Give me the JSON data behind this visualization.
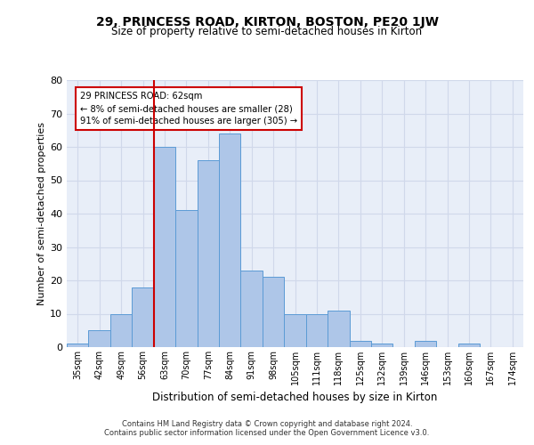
{
  "title_line1": "29, PRINCESS ROAD, KIRTON, BOSTON, PE20 1JW",
  "title_line2": "Size of property relative to semi-detached houses in Kirton",
  "xlabel": "Distribution of semi-detached houses by size in Kirton",
  "ylabel": "Number of semi-detached properties",
  "categories": [
    "35sqm",
    "42sqm",
    "49sqm",
    "56sqm",
    "63sqm",
    "70sqm",
    "77sqm",
    "84sqm",
    "91sqm",
    "98sqm",
    "105sqm",
    "111sqm",
    "118sqm",
    "125sqm",
    "132sqm",
    "139sqm",
    "146sqm",
    "153sqm",
    "160sqm",
    "167sqm",
    "174sqm"
  ],
  "bar_values": [
    1,
    5,
    10,
    18,
    60,
    41,
    56,
    64,
    23,
    21,
    10,
    10,
    11,
    2,
    1,
    0,
    2,
    0,
    1,
    0,
    0
  ],
  "bar_color": "#aec6e8",
  "bar_edgecolor": "#5b9bd5",
  "vline_x_index": 3.5,
  "vline_color": "#cc0000",
  "annotation_title": "29 PRINCESS ROAD: 62sqm",
  "annotation_line1": "← 8% of semi-detached houses are smaller (28)",
  "annotation_line2": "91% of semi-detached houses are larger (305) →",
  "annotation_box_facecolor": "#ffffff",
  "annotation_box_edgecolor": "#cc0000",
  "ylim": [
    0,
    80
  ],
  "yticks": [
    0,
    10,
    20,
    30,
    40,
    50,
    60,
    70,
    80
  ],
  "grid_color": "#d0d8ea",
  "background_color": "#e8eef8",
  "footer_line1": "Contains HM Land Registry data © Crown copyright and database right 2024.",
  "footer_line2": "Contains public sector information licensed under the Open Government Licence v3.0."
}
